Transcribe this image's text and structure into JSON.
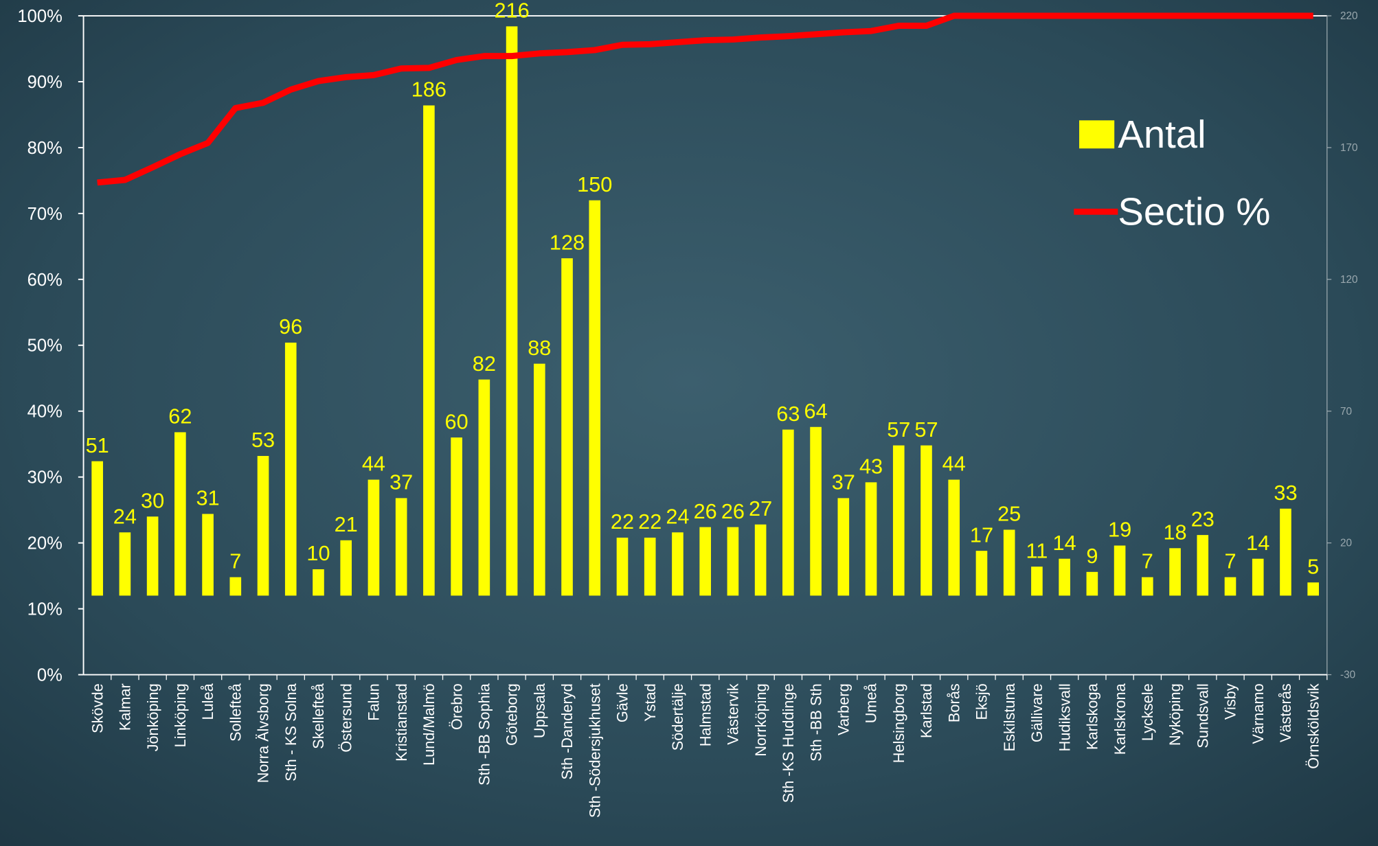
{
  "chart_data": {
    "type": "bar",
    "categories": [
      "Skövde",
      "Kalmar",
      "Jönköping",
      "Linköping",
      "Luleå",
      "Sollefteå",
      "Norra Älvsborg",
      "Sth - KS Solna",
      "Skellefteå",
      "Östersund",
      "Falun",
      "Kristianstad",
      "Lund/Malmö",
      "Örebro",
      "Sth -BB Sophia",
      "Göteborg",
      "Uppsala",
      "Sth -Danderyd",
      "Sth -Södersjukhuset",
      "Gävle",
      "Ystad",
      "Södertälje",
      "Halmstad",
      "Västervik",
      "Norrköping",
      "Sth -KS Huddinge",
      "Sth -BB Sth",
      "Varberg",
      "Umeå",
      "Helsingborg",
      "Karlstad",
      "Borås",
      "Eksjö",
      "Eskilstuna",
      "Gällivare",
      "Hudiksvall",
      "Karlskoga",
      "Karlskrona",
      "Lycksele",
      "Nyköping",
      "Sundsvall",
      "Visby",
      "Värnamo",
      "Västerås",
      "Örnsköldsvik"
    ],
    "series": [
      {
        "name": "Antal",
        "type": "bar",
        "color": "#ffff00",
        "axis": "y2",
        "values": [
          51,
          24,
          30,
          62,
          31,
          7,
          53,
          96,
          10,
          21,
          44,
          37,
          186,
          60,
          82,
          216,
          88,
          128,
          150,
          22,
          22,
          24,
          26,
          26,
          27,
          63,
          64,
          37,
          43,
          57,
          57,
          44,
          17,
          25,
          11,
          14,
          9,
          19,
          7,
          18,
          23,
          7,
          14,
          33,
          5
        ]
      },
      {
        "name": "Sectio %",
        "type": "line",
        "color": "#ff0000",
        "axis": "y",
        "values": [
          74.7,
          75.1,
          77,
          79,
          80.7,
          86,
          86.8,
          88.8,
          90.1,
          90.7,
          91,
          92,
          92.1,
          93.3,
          93.9,
          93.9,
          94.3,
          94.5,
          94.8,
          95.6,
          95.7,
          96,
          96.3,
          96.4,
          96.7,
          96.9,
          97.2,
          97.5,
          97.7,
          98.5,
          98.5,
          100,
          100,
          100,
          100,
          100,
          100,
          100,
          100,
          100,
          100,
          100,
          100,
          100,
          100
        ]
      }
    ],
    "ylim": [
      0,
      100
    ],
    "yticks": [
      {
        "value": 0,
        "label": "0%"
      },
      {
        "value": 10,
        "label": "10%"
      },
      {
        "value": 20,
        "label": "20%"
      },
      {
        "value": 30,
        "label": "30%"
      },
      {
        "value": 40,
        "label": "40%"
      },
      {
        "value": 50,
        "label": "50%"
      },
      {
        "value": 60,
        "label": "60%"
      },
      {
        "value": 70,
        "label": "70%"
      },
      {
        "value": 80,
        "label": "80%"
      },
      {
        "value": 90,
        "label": "90%"
      },
      {
        "value": 100,
        "label": "100%"
      }
    ],
    "y2lim": [
      -30,
      220
    ],
    "y2ticks": [
      -30,
      20,
      70,
      120,
      170,
      220
    ],
    "legend": "upper right"
  }
}
